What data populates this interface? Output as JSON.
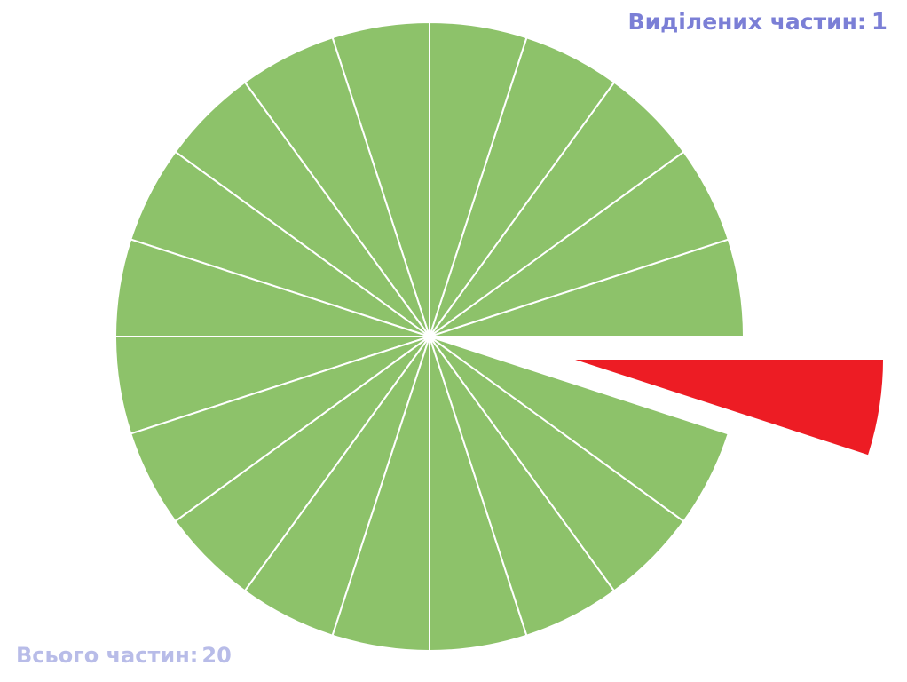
{
  "selected_label": "Виділених частин:",
  "selected_count": "1",
  "total_label": "Всього частин",
  "total_separator": ":",
  "total_count": "20",
  "fraction_circle": {
    "total_parts": 20,
    "selected_parts": 1,
    "selected_index": 19,
    "colors": {
      "unselected": "#8dc26a",
      "selected": "#ed1c24",
      "divider": "#ffffff"
    }
  }
}
